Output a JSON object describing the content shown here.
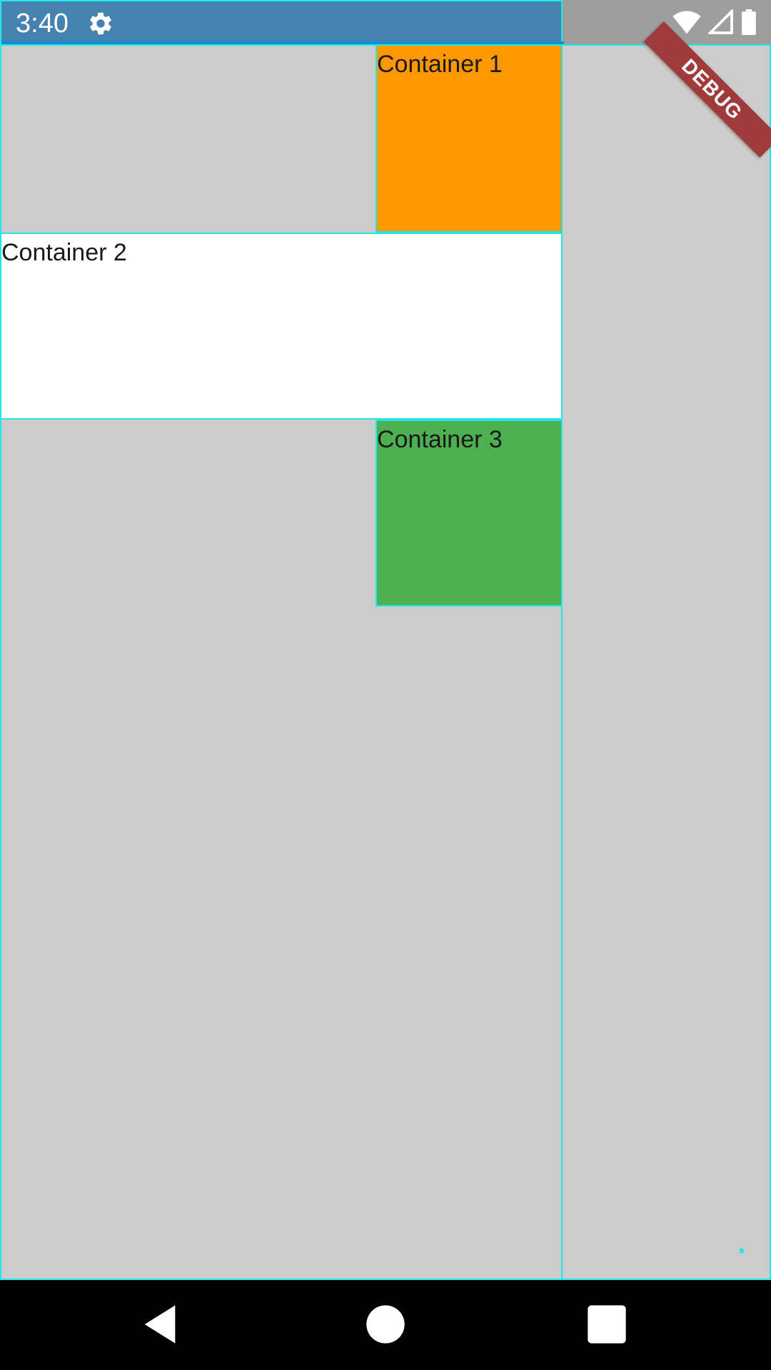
{
  "status_bar": {
    "time": "3:40",
    "icons": [
      "gear-icon",
      "wifi-icon",
      "signal-icon",
      "battery-icon"
    ]
  },
  "debug_banner": {
    "label": "DEBUG",
    "color": "#a13b3b"
  },
  "containers": [
    {
      "label": "Container 1",
      "color": "#ff9800"
    },
    {
      "label": "Container 2",
      "color": "#ffffff"
    },
    {
      "label": "Container 3",
      "color": "#4caf50"
    }
  ],
  "colors": {
    "background": "#cccccc",
    "status_bar": "#4682b0",
    "outline": "#1de9e9"
  },
  "nav_bar": {
    "buttons": [
      "back-icon",
      "home-icon",
      "recents-icon"
    ]
  }
}
